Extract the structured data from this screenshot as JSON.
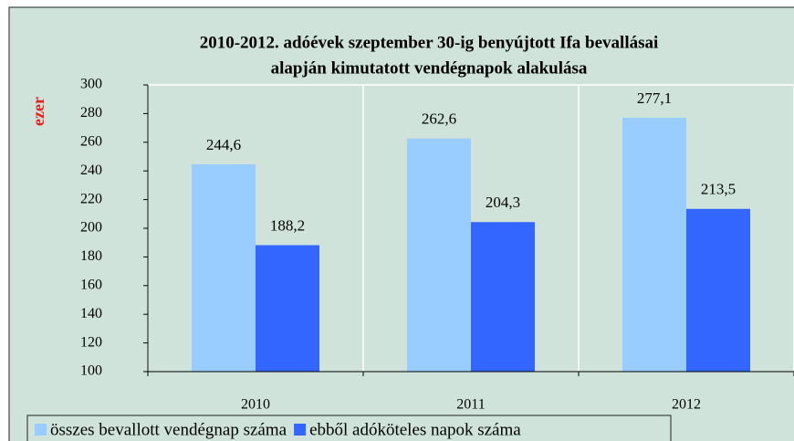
{
  "chart_data": {
    "type": "bar",
    "title": "2010-2012. adóévek szeptember 30-ig benyújtott Ifa bevallásai",
    "subtitle": "alapján kimutatott vendégnapok alakulása",
    "y_label": "ezer",
    "categories": [
      "2010",
      "2011",
      "2012"
    ],
    "series": [
      {
        "name": "összes bevallott vendégnap száma",
        "color": "#99ccff",
        "values": [
          244.6,
          262.6,
          277.1
        ],
        "value_labels": [
          "244,6",
          "262,6",
          "277,1"
        ]
      },
      {
        "name": "ebből adóköteles napok száma",
        "color": "#3366ff",
        "values": [
          188.2,
          204.3,
          213.5
        ],
        "value_labels": [
          "188,2",
          "204,3",
          "213,5"
        ]
      }
    ],
    "ylim": [
      100,
      300
    ],
    "yticks": [
      100,
      120,
      140,
      160,
      180,
      200,
      220,
      240,
      260,
      280,
      300
    ]
  }
}
